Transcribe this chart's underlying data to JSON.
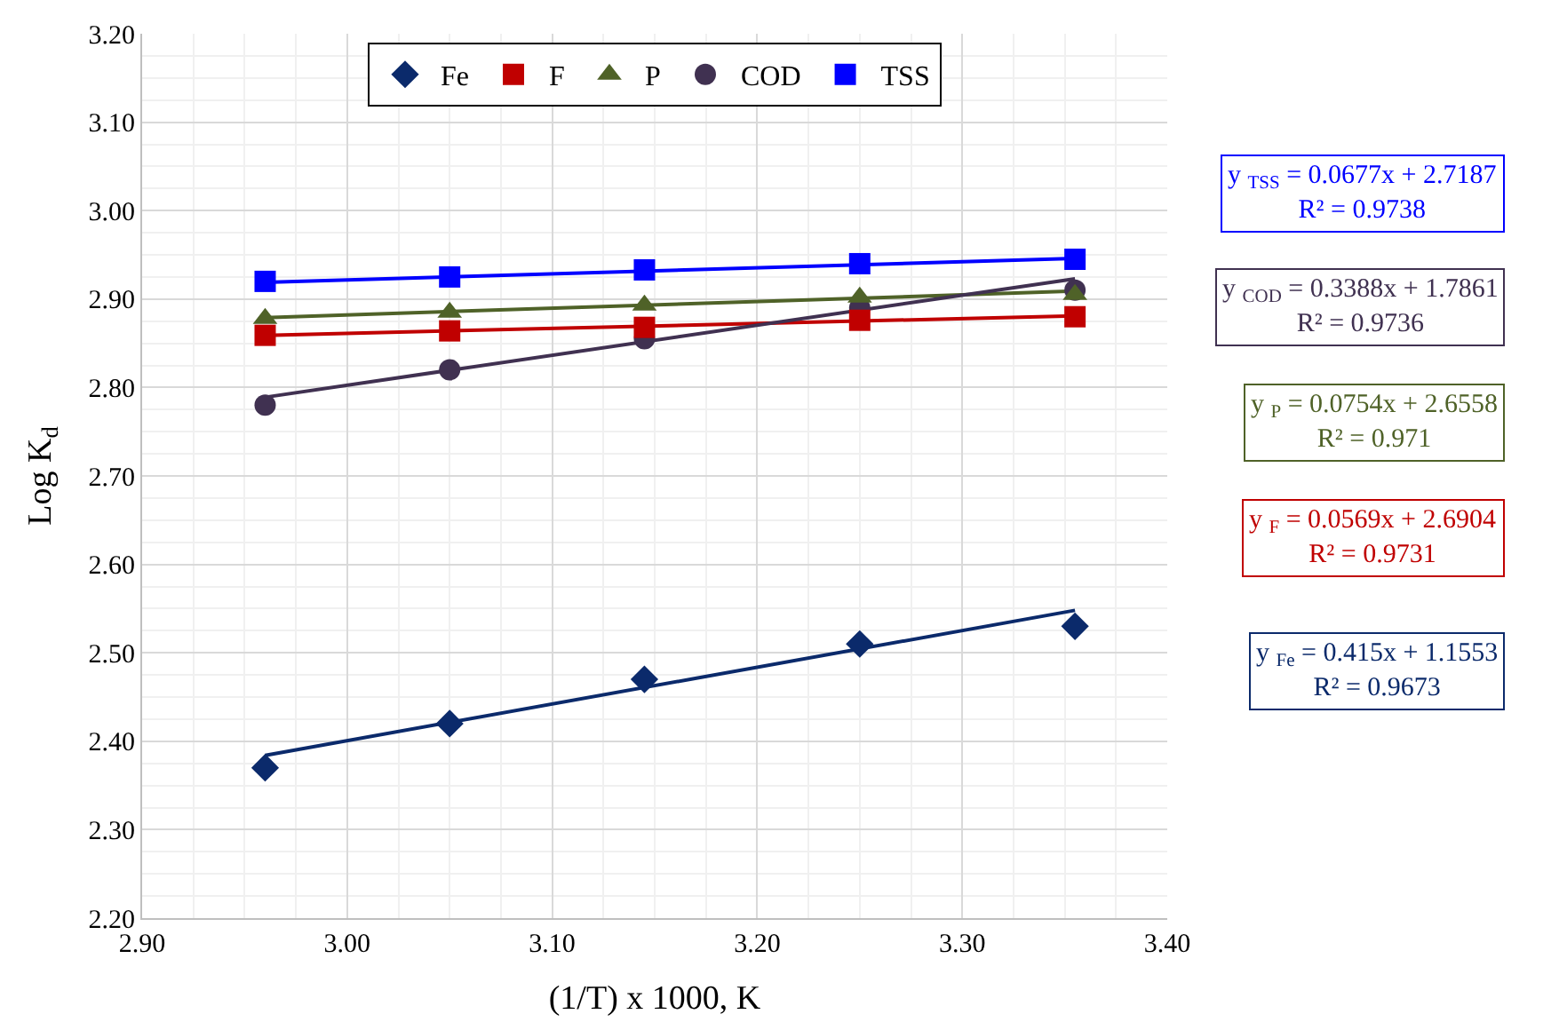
{
  "chart_data": {
    "type": "scatter",
    "xlabel": "(1/T) x 1000, K",
    "ylabel": "Log K$_{d}$",
    "series": [
      {
        "name": "Fe",
        "color": "#0b2a6b",
        "marker": "diamond",
        "x": [
          2.96,
          3.05,
          3.145,
          3.25,
          3.355
        ],
        "values": [
          2.37,
          2.42,
          2.47,
          2.51,
          2.53
        ]
      },
      {
        "name": "F",
        "color": "#c00000",
        "marker": "square",
        "x": [
          2.96,
          3.05,
          3.145,
          3.25,
          3.355
        ],
        "values": [
          2.859,
          2.864,
          2.868,
          2.876,
          2.88
        ]
      },
      {
        "name": "P",
        "color": "#4f6228",
        "marker": "triangle",
        "x": [
          2.96,
          3.05,
          3.145,
          3.25,
          3.355
        ],
        "values": [
          2.878,
          2.885,
          2.893,
          2.902,
          2.905
        ]
      },
      {
        "name": "COD",
        "color": "#403151",
        "marker": "circle",
        "x": [
          2.96,
          3.05,
          3.145,
          3.25,
          3.355
        ],
        "values": [
          2.78,
          2.82,
          2.855,
          2.89,
          2.91
        ]
      },
      {
        "name": "TSS",
        "color": "#0000ff",
        "marker": "square",
        "x": [
          2.96,
          3.05,
          3.145,
          3.25,
          3.355
        ],
        "values": [
          2.92,
          2.925,
          2.933,
          2.94,
          2.945
        ]
      },
      {
        "type": "line",
        "color": "#0b2a6b",
        "x": [
          2.96,
          3.355
        ],
        "values": [
          2.384,
          2.548
        ]
      },
      {
        "type": "line",
        "color": "#c00000",
        "x": [
          2.96,
          3.355
        ],
        "values": [
          2.859,
          2.881
        ]
      },
      {
        "type": "line",
        "color": "#4f6228",
        "x": [
          2.96,
          3.355
        ],
        "values": [
          2.879,
          2.909
        ]
      },
      {
        "type": "line",
        "color": "#403151",
        "x": [
          2.96,
          3.355
        ],
        "values": [
          2.789,
          2.923
        ]
      },
      {
        "type": "line",
        "color": "#0000ff",
        "x": [
          2.96,
          3.355
        ],
        "values": [
          2.919,
          2.946
        ]
      }
    ],
    "xlim": [
      2.9,
      3.4
    ],
    "xticks": [
      {
        "value": 2.9,
        "label": "2.90"
      },
      {
        "value": 3.0,
        "label": "3.00"
      },
      {
        "value": 3.1,
        "label": "3.10"
      },
      {
        "value": 3.2,
        "label": "3.20"
      },
      {
        "value": 3.3,
        "label": "3.30"
      },
      {
        "value": 3.4,
        "label": "3.40"
      }
    ],
    "ylim": [
      2.2,
      3.2
    ],
    "yticks": [
      {
        "value": 2.2,
        "label": "2.20"
      },
      {
        "value": 2.3,
        "label": "2.30"
      },
      {
        "value": 2.4,
        "label": "2.40"
      },
      {
        "value": 2.5,
        "label": "2.50"
      },
      {
        "value": 2.6,
        "label": "2.60"
      },
      {
        "value": 2.7,
        "label": "2.70"
      },
      {
        "value": 2.8,
        "label": "2.80"
      },
      {
        "value": 2.9,
        "label": "2.90"
      },
      {
        "value": 3.0,
        "label": "3.00"
      },
      {
        "value": 3.1,
        "label": "3.10"
      },
      {
        "value": 3.2,
        "label": "3.20"
      }
    ],
    "annotations": [
      "y $_{TSS}$ = 0.0677x + 2.7187\nR² = 0.9738",
      "y $_{COD}$ = 0.3388x + 1.7861\nR² = 0.9736",
      "y $_{P}$ = 0.0754x + 2.6558\nR² = 0.971",
      "y $_{F}$ = 0.0569x + 2.6904\nR² = 0.9731",
      "y $_{Fe}$ = 0.415x + 1.1553\nR² = 0.9673"
    ],
    "grid": true,
    "legend": "top"
  }
}
